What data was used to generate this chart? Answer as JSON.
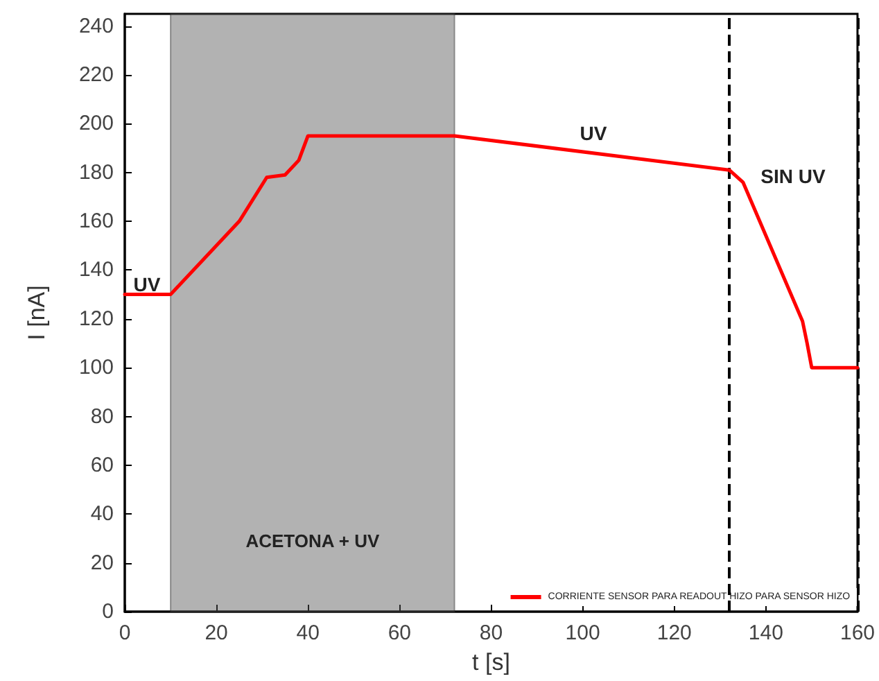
{
  "chart_data": {
    "type": "line",
    "xlabel": "t [s]",
    "ylabel": "I [nA]",
    "x": [
      0,
      10,
      25,
      31,
      35,
      38,
      40,
      72,
      132,
      135,
      148,
      149,
      150,
      160
    ],
    "series": [
      {
        "name": "CORRIENTE SENSOR PARA READOUT HIZO PARA SENSOR HIZO",
        "color": "#ff0000",
        "values": [
          130,
          130,
          160,
          178,
          179,
          185,
          195,
          195,
          181,
          176,
          119,
          110,
          100,
          100
        ]
      }
    ],
    "xlim": [
      0,
      160
    ],
    "xticks": [
      0,
      20,
      40,
      60,
      80,
      100,
      120,
      140,
      160
    ],
    "ylim": [
      0,
      245
    ],
    "yticks": [
      0,
      20,
      40,
      60,
      80,
      100,
      120,
      140,
      160,
      180,
      200,
      220,
      240
    ],
    "bands": [
      {
        "axis": "x",
        "from": 10,
        "to": 72,
        "label": "ACETONA + UV",
        "color": "#555555"
      }
    ],
    "ref_lines": [
      {
        "axis": "x",
        "value": 132,
        "line_style": "dashed",
        "color": "#000000"
      },
      {
        "axis": "x",
        "value": 160,
        "line_style": "dashed",
        "color": "#000000"
      }
    ],
    "annotations": [
      "UV",
      "UV",
      "SIN UV"
    ],
    "legend": "bottom right",
    "grid": false,
    "marker": "none",
    "line_style": "solid"
  }
}
